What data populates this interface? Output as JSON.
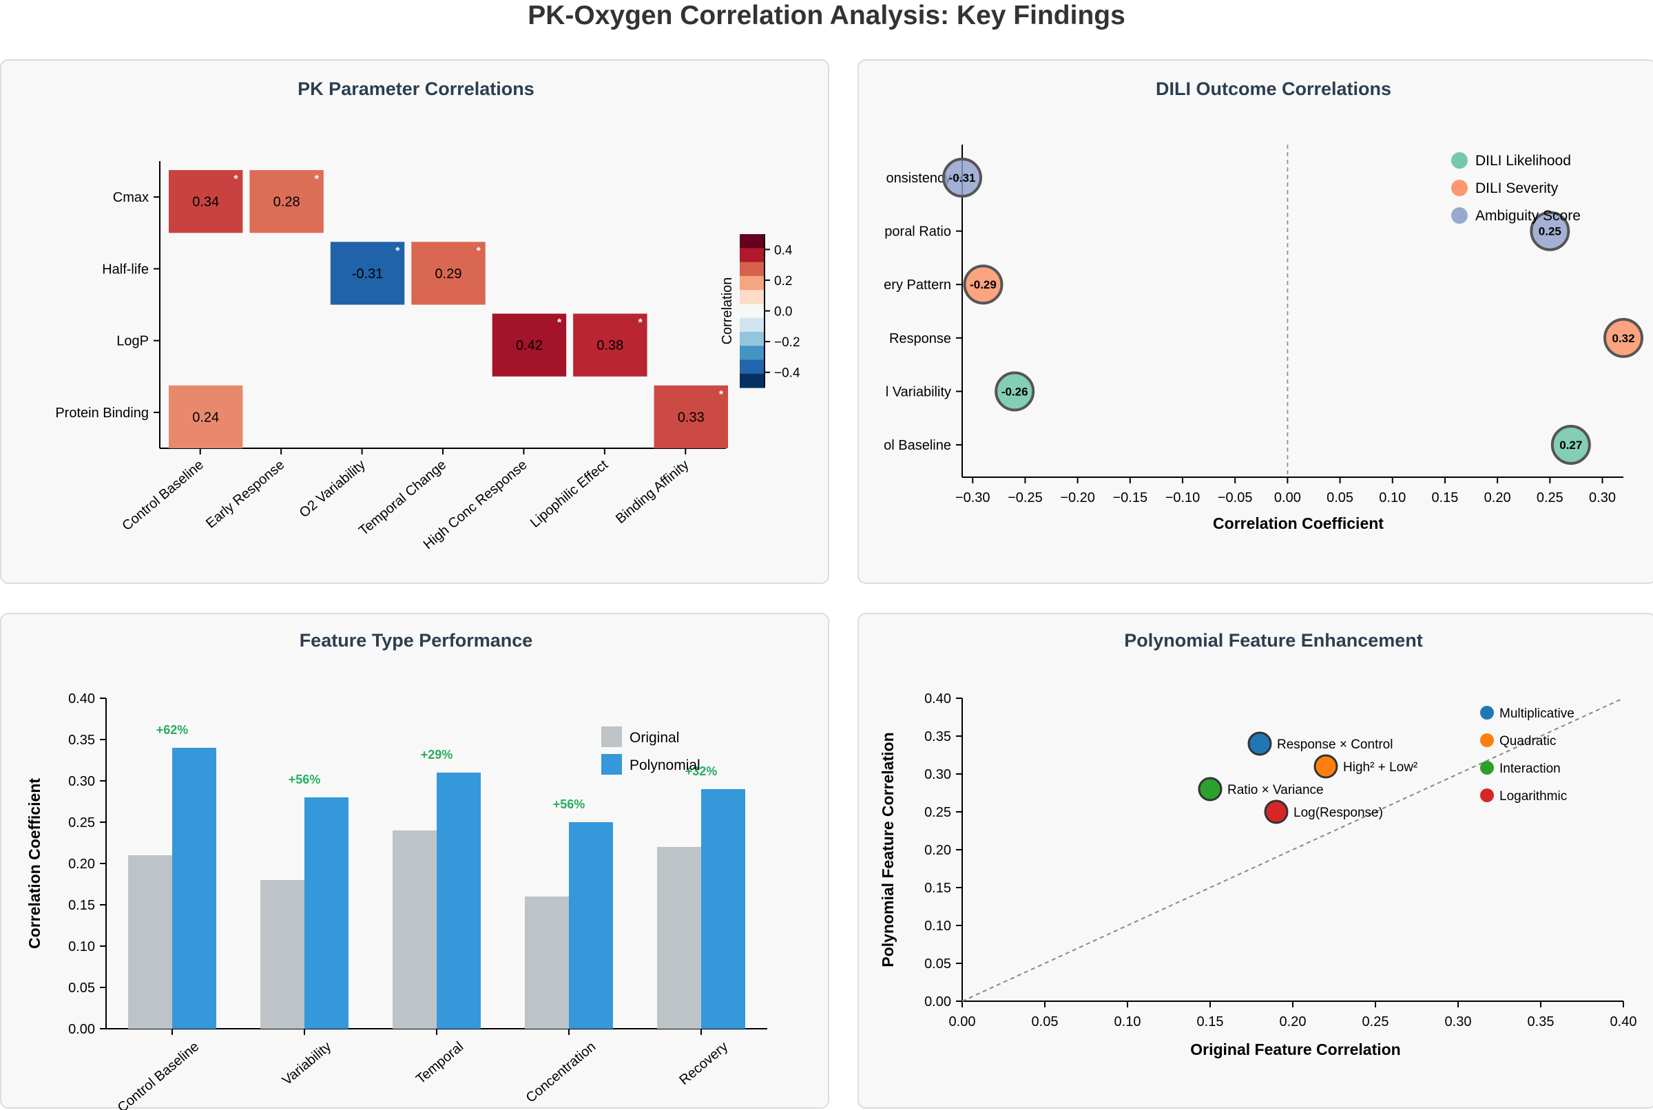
{
  "title": "PK-Oxygen Correlation Analysis: Key Findings",
  "colors": {
    "original": "#bdc3c7",
    "polynomial": "#3498db",
    "improvement": "#27ae60",
    "dili_likelihood": "#66c2a5",
    "dili_severity": "#fc8d62",
    "ambiguity_score": "#8da0cb",
    "multiplicative": "#1f77b4",
    "quadratic": "#ff7f0e",
    "interaction": "#2ca02c",
    "logarithmic": "#d62728"
  },
  "chart_data": [
    {
      "id": "heatmap",
      "type": "heatmap",
      "title": "PK Parameter Correlations",
      "rows": [
        "Cmax",
        "Half-life",
        "LogP",
        "Protein Binding"
      ],
      "columns": [
        "Control Baseline",
        "Early Response",
        "O2 Variability",
        "Temporal Change",
        "High Conc Response",
        "Lipophilic Effect",
        "Binding Affinity"
      ],
      "cells": [
        {
          "row": "Cmax",
          "column": "Control Baseline",
          "value": 0.34,
          "label": "0.34",
          "significant": true
        },
        {
          "row": "Cmax",
          "column": "Early Response",
          "value": 0.28,
          "label": "0.28",
          "significant": true
        },
        {
          "row": "Half-life",
          "column": "O2 Variability",
          "value": -0.31,
          "label": "-0.31",
          "significant": true
        },
        {
          "row": "Half-life",
          "column": "Temporal Change",
          "value": 0.29,
          "label": "0.29",
          "significant": true
        },
        {
          "row": "LogP",
          "column": "High Conc Response",
          "value": 0.42,
          "label": "0.42",
          "significant": true
        },
        {
          "row": "LogP",
          "column": "Lipophilic Effect",
          "value": 0.38,
          "label": "0.38",
          "significant": true
        },
        {
          "row": "Protein Binding",
          "column": "Control Baseline",
          "value": 0.24,
          "label": "0.24",
          "significant": false
        },
        {
          "row": "Protein Binding",
          "column": "Binding Affinity",
          "value": 0.33,
          "label": "0.33",
          "significant": true
        }
      ],
      "significance_marker": "*",
      "colorbar": {
        "label": "Correlation",
        "range": [
          -0.5,
          0.5
        ],
        "ticks": [
          "0.4",
          "0.2",
          "0.0",
          "−0.2",
          "−0.4"
        ],
        "tick_values": [
          0.4,
          0.2,
          0.0,
          -0.2,
          -0.4
        ],
        "colors": [
          "#67001f",
          "#b2182b",
          "#d6604d",
          "#f4a582",
          "#fddbc7",
          "#f7f7f7",
          "#d1e5f0",
          "#92c5de",
          "#4393c3",
          "#2166ac",
          "#053061"
        ]
      }
    },
    {
      "id": "dili",
      "type": "scatter",
      "title": "DILI Outcome Correlations",
      "xlabel": "Correlation Coefficient",
      "xlim": [
        -0.31,
        0.32
      ],
      "xticks": [
        "−0.30",
        "−0.25",
        "−0.20",
        "−0.15",
        "−0.10",
        "−0.05",
        "0.00",
        "0.05",
        "0.10",
        "0.15",
        "0.20",
        "0.25",
        "0.30"
      ],
      "xtick_values": [
        -0.3,
        -0.25,
        -0.2,
        -0.15,
        -0.1,
        -0.05,
        0.0,
        0.05,
        0.1,
        0.15,
        0.2,
        0.25,
        0.3
      ],
      "categories_visible_text": [
        "onsistency",
        "poral Ratio",
        "ery Pattern",
        "Response",
        "l Variability",
        "ol Baseline"
      ],
      "zero_line": true,
      "legend": {
        "position": "top-right",
        "entries": [
          "DILI Likelihood",
          "DILI Severity",
          "Ambiguity Score"
        ]
      },
      "points": [
        {
          "category_index": 0,
          "series": "Ambiguity Score",
          "x": -0.31,
          "label": "-0.31"
        },
        {
          "category_index": 1,
          "series": "Ambiguity Score",
          "x": 0.25,
          "label": "0.25"
        },
        {
          "category_index": 2,
          "series": "DILI Severity",
          "x": -0.29,
          "label": "-0.29"
        },
        {
          "category_index": 3,
          "series": "DILI Severity",
          "x": 0.32,
          "label": "0.32"
        },
        {
          "category_index": 4,
          "series": "DILI Likelihood",
          "x": -0.26,
          "label": "-0.26"
        },
        {
          "category_index": 5,
          "series": "DILI Likelihood",
          "x": 0.27,
          "label": "0.27"
        }
      ]
    },
    {
      "id": "feature",
      "type": "bar",
      "title": "Feature Type Performance",
      "ylabel": "Correlation Coefficient",
      "ylim": [
        0,
        0.4
      ],
      "yticks": [
        "0.00",
        "0.05",
        "0.10",
        "0.15",
        "0.20",
        "0.25",
        "0.30",
        "0.35",
        "0.40"
      ],
      "ytick_values": [
        0,
        0.05,
        0.1,
        0.15,
        0.2,
        0.25,
        0.3,
        0.35,
        0.4
      ],
      "categories": [
        "Control Baseline",
        "Variability",
        "Temporal",
        "Concentration",
        "Recovery"
      ],
      "series": [
        {
          "name": "Original",
          "values": [
            0.21,
            0.18,
            0.24,
            0.16,
            0.22
          ]
        },
        {
          "name": "Polynomial",
          "values": [
            0.34,
            0.28,
            0.31,
            0.25,
            0.29
          ]
        }
      ],
      "improvements": [
        "+62%",
        "+56%",
        "+29%",
        "+56%",
        "+32%"
      ],
      "legend": {
        "position": "top-right"
      }
    },
    {
      "id": "poly",
      "type": "scatter",
      "title": "Polynomial Feature Enhancement",
      "xlabel": "Original Feature Correlation",
      "ylabel": "Polynomial Feature Correlation",
      "xlim": [
        0,
        0.4
      ],
      "ylim": [
        0,
        0.4
      ],
      "xticks": [
        "0.00",
        "0.05",
        "0.10",
        "0.15",
        "0.20",
        "0.25",
        "0.30",
        "0.35",
        "0.40"
      ],
      "yticks": [
        "0.00",
        "0.05",
        "0.10",
        "0.15",
        "0.20",
        "0.25",
        "0.30",
        "0.35",
        "0.40"
      ],
      "tick_values": [
        0,
        0.05,
        0.1,
        0.15,
        0.2,
        0.25,
        0.3,
        0.35,
        0.4
      ],
      "diagonal": true,
      "legend": {
        "position": "top-right",
        "entries": [
          "Multiplicative",
          "Quadratic",
          "Interaction",
          "Logarithmic"
        ]
      },
      "points": [
        {
          "label": "Response × Control",
          "type": "Multiplicative",
          "x": 0.18,
          "y": 0.34
        },
        {
          "label": "High² + Low²",
          "type": "Quadratic",
          "x": 0.22,
          "y": 0.31
        },
        {
          "label": "Ratio × Variance",
          "type": "Interaction",
          "x": 0.15,
          "y": 0.28
        },
        {
          "label": "Log(Response)",
          "type": "Logarithmic",
          "x": 0.19,
          "y": 0.25
        }
      ]
    }
  ]
}
